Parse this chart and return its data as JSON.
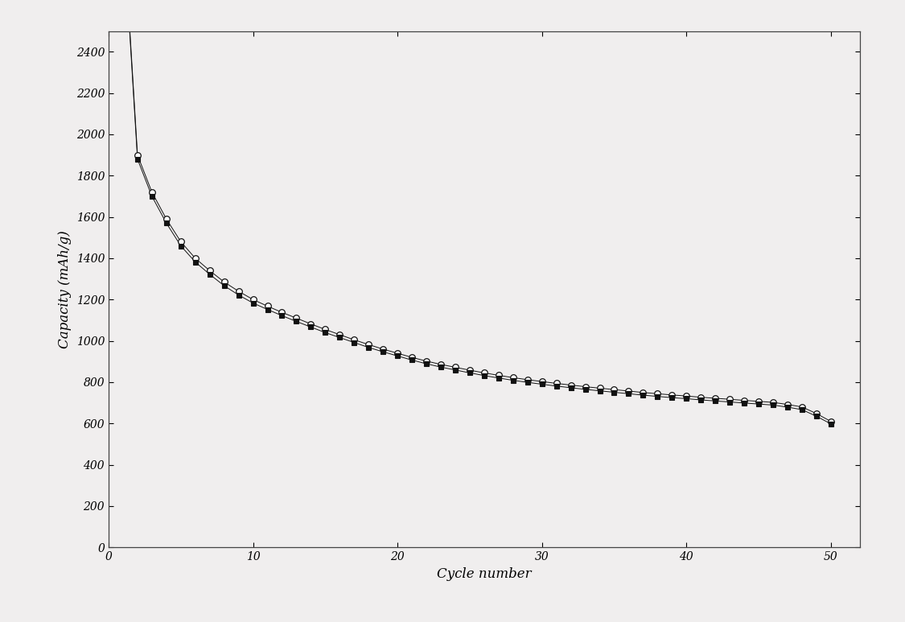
{
  "title": "",
  "xlabel": "Cycle number",
  "ylabel": "Capacity (mAh/g)",
  "xlim": [
    0,
    52
  ],
  "ylim": [
    0,
    2500
  ],
  "xticks": [
    0,
    10,
    20,
    30,
    40,
    50
  ],
  "yticks": [
    0,
    200,
    400,
    600,
    800,
    1000,
    1200,
    1400,
    1600,
    1800,
    2000,
    2200,
    2400
  ],
  "background_color": "#f0eeee",
  "plot_bg_color": "#f0eeee",
  "line_color": "#111111",
  "marker_open_color": "white",
  "marker_edge_color": "#111111",
  "marker_fill_color": "#111111",
  "xlabel_fontsize": 12,
  "ylabel_fontsize": 12,
  "tick_fontsize": 10,
  "cycles": [
    1,
    2,
    3,
    4,
    5,
    6,
    7,
    8,
    9,
    10,
    11,
    12,
    13,
    14,
    15,
    16,
    17,
    18,
    19,
    20,
    21,
    22,
    23,
    24,
    25,
    26,
    27,
    28,
    29,
    30,
    31,
    32,
    33,
    34,
    35,
    36,
    37,
    38,
    39,
    40,
    41,
    42,
    43,
    44,
    45,
    46,
    47,
    48,
    49,
    50
  ],
  "charge_capacity": [
    3040,
    1900,
    1720,
    1590,
    1480,
    1400,
    1340,
    1285,
    1240,
    1200,
    1168,
    1138,
    1110,
    1082,
    1055,
    1030,
    1005,
    982,
    960,
    940,
    920,
    902,
    886,
    872,
    858,
    845,
    833,
    822,
    812,
    803,
    794,
    786,
    778,
    771,
    764,
    757,
    750,
    744,
    738,
    733,
    727,
    722,
    717,
    712,
    707,
    702,
    692,
    680,
    648,
    610
  ],
  "discharge_capacity": [
    3020,
    1880,
    1700,
    1570,
    1460,
    1382,
    1322,
    1267,
    1222,
    1183,
    1152,
    1122,
    1094,
    1067,
    1040,
    1016,
    992,
    968,
    947,
    927,
    907,
    889,
    873,
    859,
    845,
    832,
    820,
    809,
    799,
    790,
    781,
    773,
    765,
    758,
    751,
    744,
    737,
    731,
    725,
    720,
    714,
    709,
    704,
    699,
    694,
    689,
    679,
    667,
    635,
    598
  ]
}
